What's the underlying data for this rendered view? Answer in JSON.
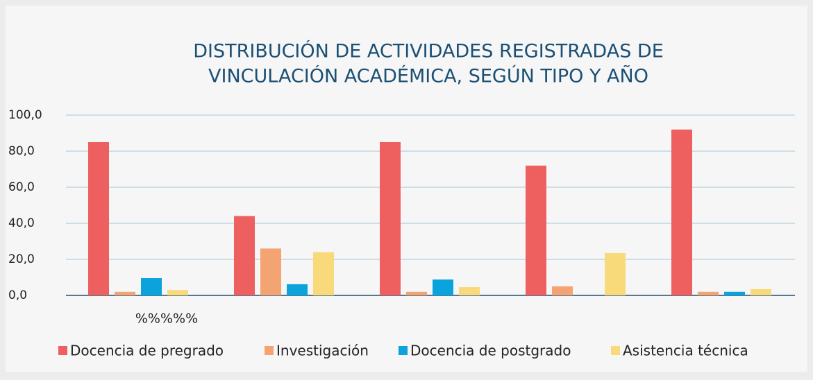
{
  "chart_data": {
    "type": "bar",
    "title_lines": [
      "DISTRIBUCIÓN DE ACTIVIDADES REGISTRADAS DE",
      "VINCULACIÓN ACADÉMICA, SEGÚN TIPO Y AÑO"
    ],
    "categories": [
      "%%%%%",
      null,
      null,
      null,
      null
    ],
    "series": [
      {
        "name": "Docencia de pregrado",
        "color": "#ee5f5f",
        "values": [
          85,
          44,
          85,
          72,
          92
        ]
      },
      {
        "name": "Investigación",
        "color": "#f4a373",
        "values": [
          2,
          26,
          2,
          5,
          2
        ]
      },
      {
        "name": "Docencia de postgrado",
        "color": "#0aa3db",
        "values": [
          9.6,
          6.2,
          8.8,
          0,
          2
        ]
      },
      {
        "name": "Asistencia técnica",
        "color": "#f8da7a",
        "values": [
          3,
          24,
          4.6,
          23.5,
          3.5
        ]
      }
    ],
    "ylim": [
      0,
      100
    ],
    "yticks": [
      {
        "value": 0,
        "label": "0,0"
      },
      {
        "value": 20,
        "label": "20,0"
      },
      {
        "value": 40,
        "label": "40,0"
      },
      {
        "value": 60,
        "label": "60,0"
      },
      {
        "value": 80,
        "label": "80,0"
      },
      {
        "value": 100,
        "label": "100,0"
      }
    ],
    "grid": true,
    "legend": "bottom"
  }
}
